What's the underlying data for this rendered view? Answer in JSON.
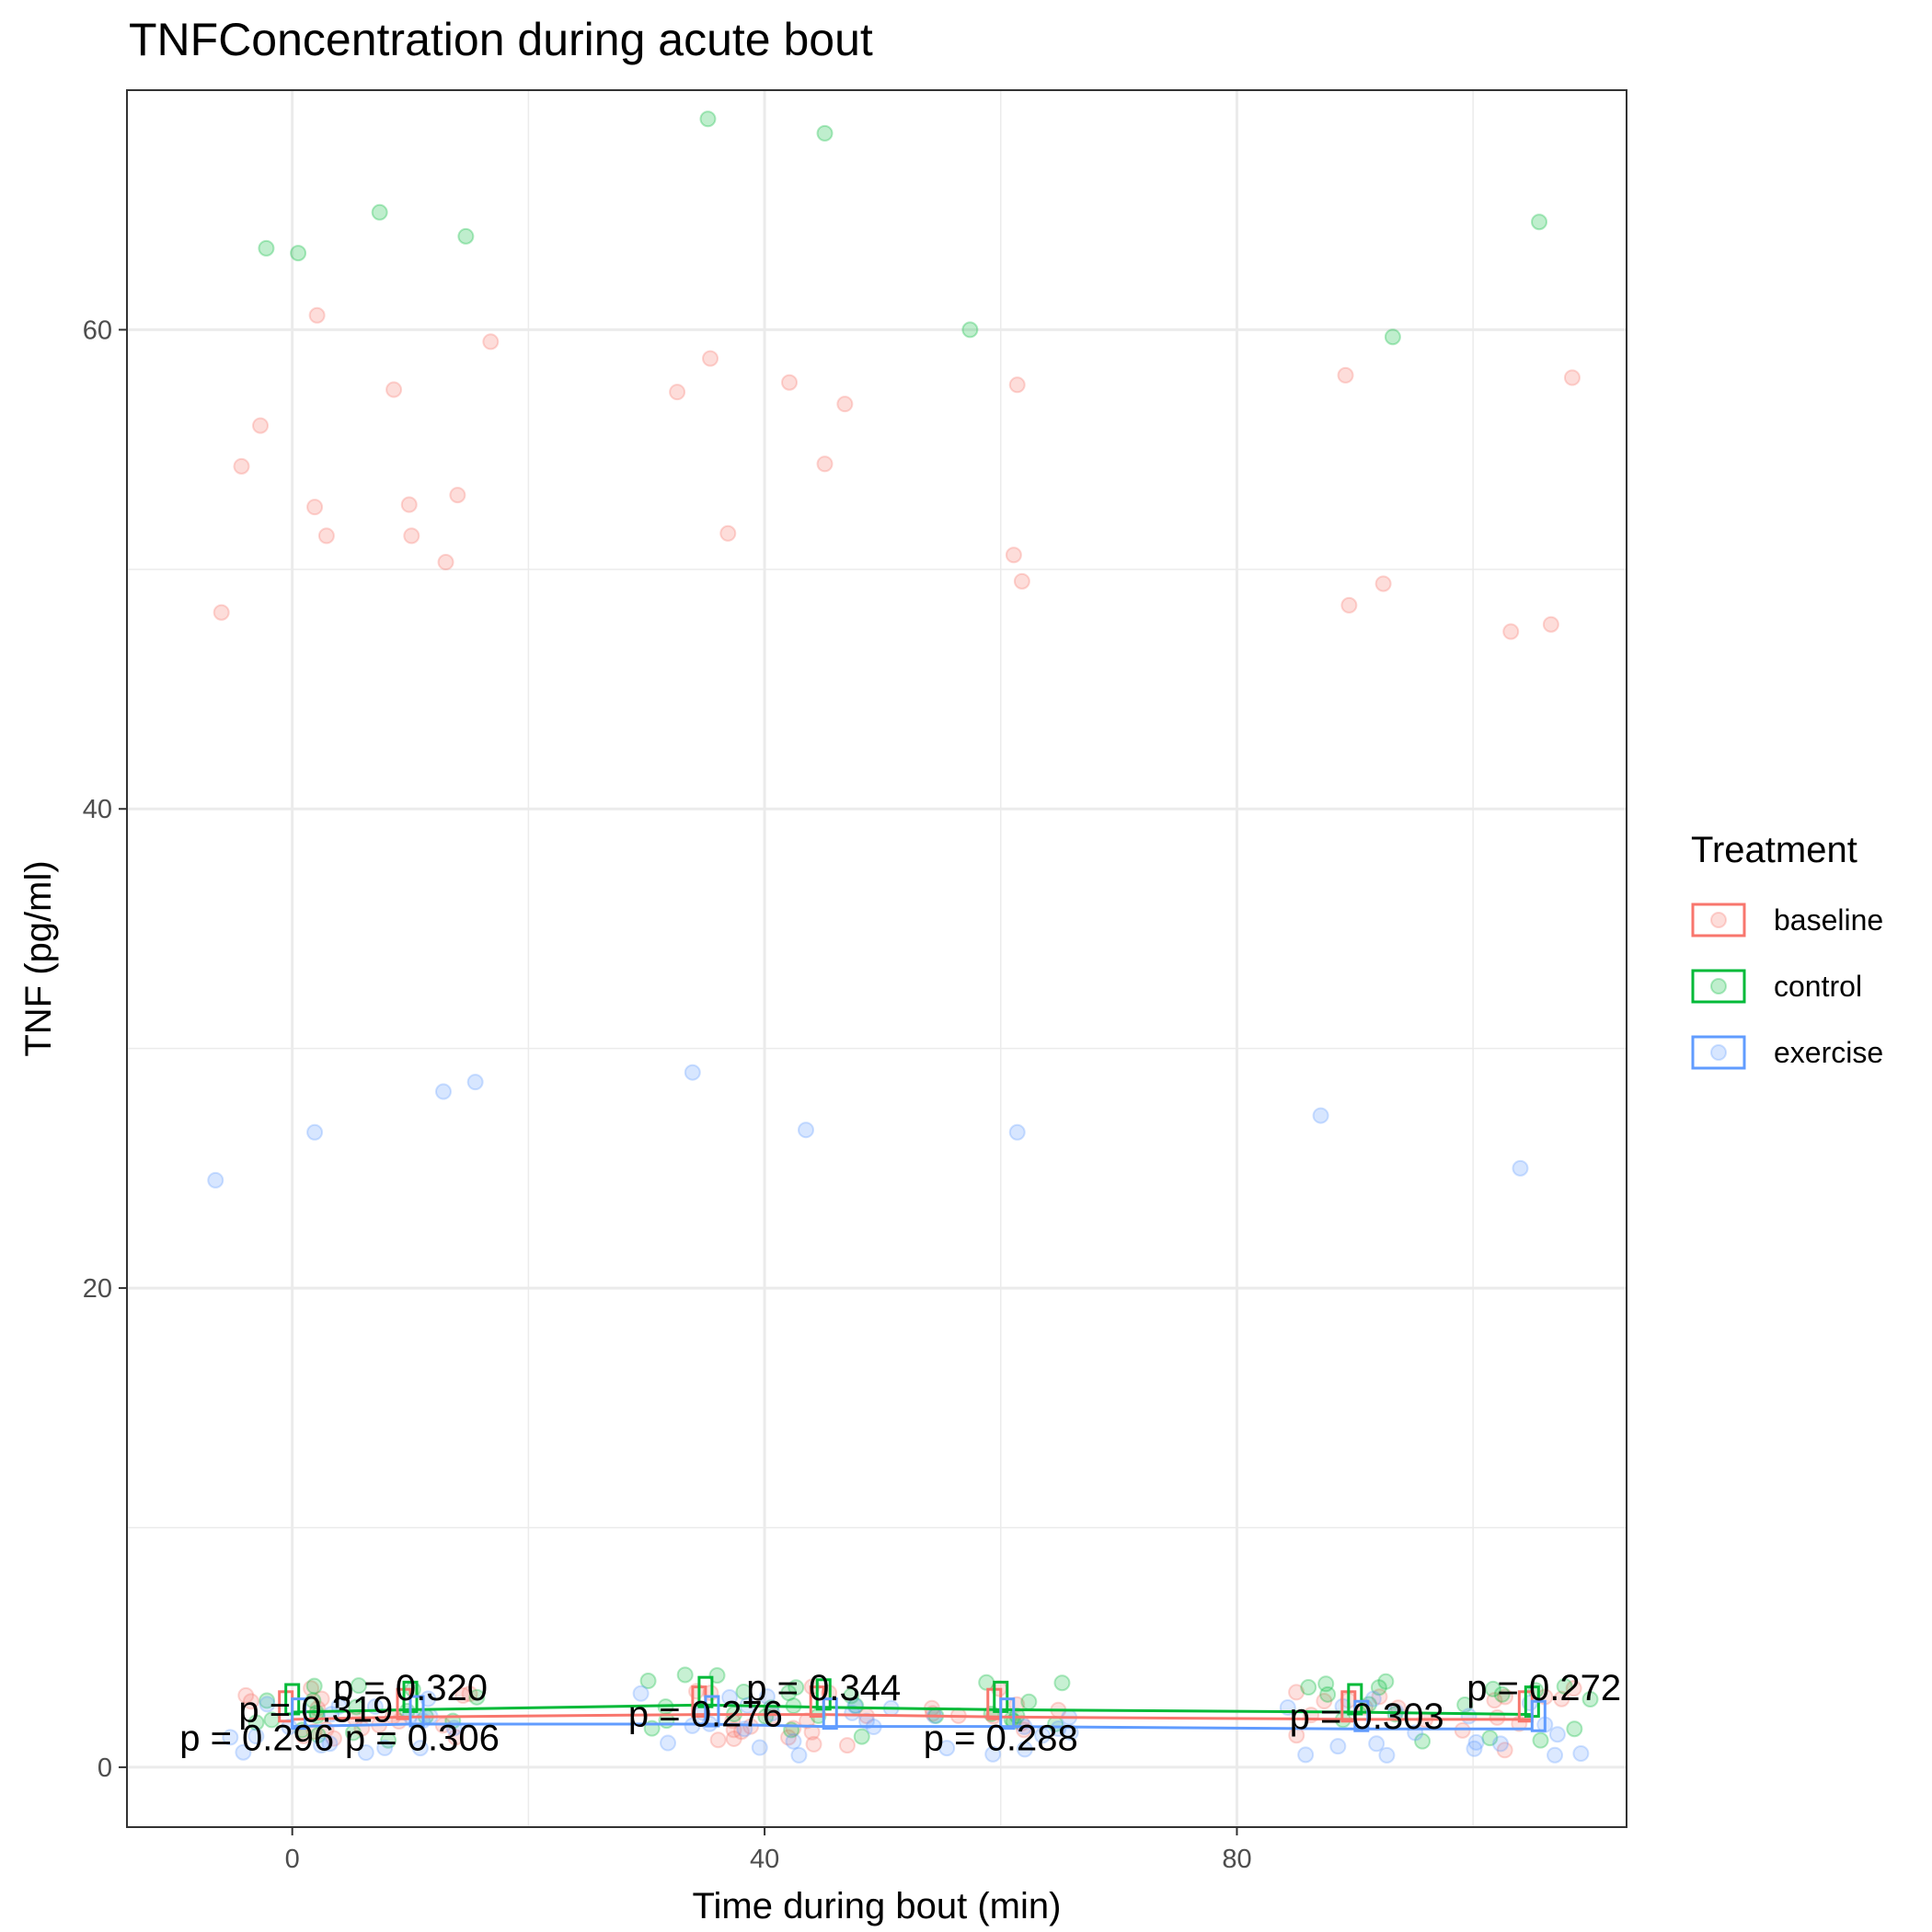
{
  "chart_data": {
    "type": "scatter",
    "title": "TNFConcentration during acute bout",
    "xlabel": "Time during bout (min)",
    "ylabel": "TNF (pg/ml)",
    "xlim": [
      -14,
      113
    ],
    "ylim": [
      -2.5,
      70
    ],
    "x_ticks": [
      0,
      40,
      80
    ],
    "y_ticks": [
      0,
      20,
      40,
      60
    ],
    "grid": true,
    "legend": {
      "title": "Treatment",
      "position": "right",
      "entries": [
        "baseline",
        "control",
        "exercise"
      ]
    },
    "colors": {
      "baseline": "#F8766D",
      "control": "#00BA38",
      "exercise": "#619CFF"
    },
    "series": [
      {
        "name": "baseline",
        "means": [
          [
            0,
            2.0
          ],
          [
            10,
            2.1
          ],
          [
            35,
            2.2
          ],
          [
            45,
            2.2
          ],
          [
            60,
            2.1
          ],
          [
            90,
            2.0
          ],
          [
            105,
            2.0
          ]
        ],
        "points": [
          [
            -6,
            48.2
          ],
          [
            -4.3,
            54.3
          ],
          [
            -2.7,
            56.0
          ],
          [
            1.9,
            52.6
          ],
          [
            2.1,
            60.6
          ],
          [
            2.9,
            51.4
          ],
          [
            8.6,
            57.5
          ],
          [
            9.9,
            52.7
          ],
          [
            10.1,
            51.4
          ],
          [
            13,
            50.3
          ],
          [
            14,
            53.1
          ],
          [
            16.8,
            59.5
          ],
          [
            32.6,
            57.4
          ],
          [
            35.4,
            58.8
          ],
          [
            36.9,
            51.5
          ],
          [
            42.1,
            57.8
          ],
          [
            45.1,
            54.4
          ],
          [
            46.8,
            56.9
          ],
          [
            61.1,
            50.6
          ],
          [
            61.4,
            57.7
          ],
          [
            61.8,
            49.5
          ],
          [
            89.2,
            58.1
          ],
          [
            89.5,
            48.5
          ],
          [
            92.4,
            49.4
          ],
          [
            103.2,
            47.4
          ],
          [
            106.6,
            47.7
          ],
          [
            108.4,
            58.0
          ]
        ]
      },
      {
        "name": "control",
        "means": [
          [
            0,
            2.3
          ],
          [
            10,
            2.4
          ],
          [
            35,
            2.6
          ],
          [
            45,
            2.5
          ],
          [
            60,
            2.4
          ],
          [
            90,
            2.3
          ],
          [
            105,
            2.2
          ]
        ],
        "points": [
          [
            -2.2,
            63.4
          ],
          [
            0.5,
            63.2
          ],
          [
            7.4,
            64.9
          ],
          [
            14.7,
            63.9
          ],
          [
            35.2,
            68.8
          ],
          [
            45.1,
            68.2
          ],
          [
            57.4,
            60.0
          ],
          [
            93.2,
            59.7
          ],
          [
            105.6,
            64.5
          ]
        ]
      },
      {
        "name": "exercise",
        "means": [
          [
            0,
            1.7
          ],
          [
            10,
            1.8
          ],
          [
            35,
            1.8
          ],
          [
            45,
            1.7
          ],
          [
            60,
            1.7
          ],
          [
            90,
            1.6
          ],
          [
            105,
            1.6
          ]
        ],
        "points": [
          [
            -6.5,
            24.5
          ],
          [
            1.9,
            26.5
          ],
          [
            12.8,
            28.2
          ],
          [
            15.5,
            28.6
          ],
          [
            33.9,
            29.0
          ],
          [
            43.5,
            26.6
          ],
          [
            61.4,
            26.5
          ],
          [
            87.1,
            27.2
          ],
          [
            104,
            25.0
          ]
        ]
      }
    ],
    "annotations": [
      {
        "text": "p = 0.296",
        "x": -3,
        "y": 0.7
      },
      {
        "text": "p = 0.319",
        "x": 2,
        "y": 1.9
      },
      {
        "text": "p = 0.320",
        "x": 10,
        "y": 2.8
      },
      {
        "text": "p = 0.306",
        "x": 11,
        "y": 0.7
      },
      {
        "text": "p = 0.276",
        "x": 35,
        "y": 1.7
      },
      {
        "text": "p = 0.344",
        "x": 45,
        "y": 2.8
      },
      {
        "text": "p = 0.288",
        "x": 60,
        "y": 0.7
      },
      {
        "text": "p = 0.303",
        "x": 91,
        "y": 1.6
      },
      {
        "text": "p = 0.272",
        "x": 106,
        "y": 2.8
      }
    ]
  }
}
